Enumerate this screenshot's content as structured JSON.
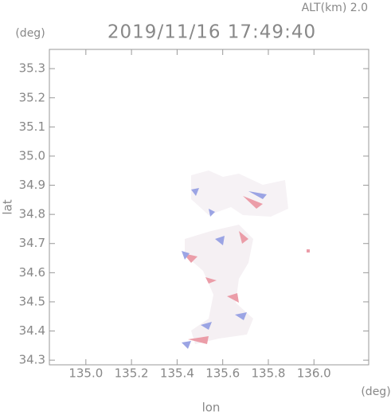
{
  "chart_data": {
    "type": "map",
    "title": "2019/11/16 17:49:40",
    "subtitle": "ALT(km) 2.0",
    "y_unit": "(deg)",
    "x_unit": "(deg)",
    "x_label": "lon",
    "y_label": "lat",
    "xlim": [
      134.84,
      136.24
    ],
    "ylim": [
      34.284,
      35.366
    ],
    "xticks": [
      {
        "value": 135,
        "label": "135.0"
      },
      135.2,
      135.4,
      135.6,
      135.8,
      {
        "value": 136,
        "label": "136.0"
      }
    ],
    "yticks": [
      34.3,
      34.4,
      34.5,
      34.6,
      34.7,
      34.8,
      34.9,
      {
        "value": 35,
        "label": "35.0"
      },
      35.1,
      35.2,
      35.3
    ]
  }
}
